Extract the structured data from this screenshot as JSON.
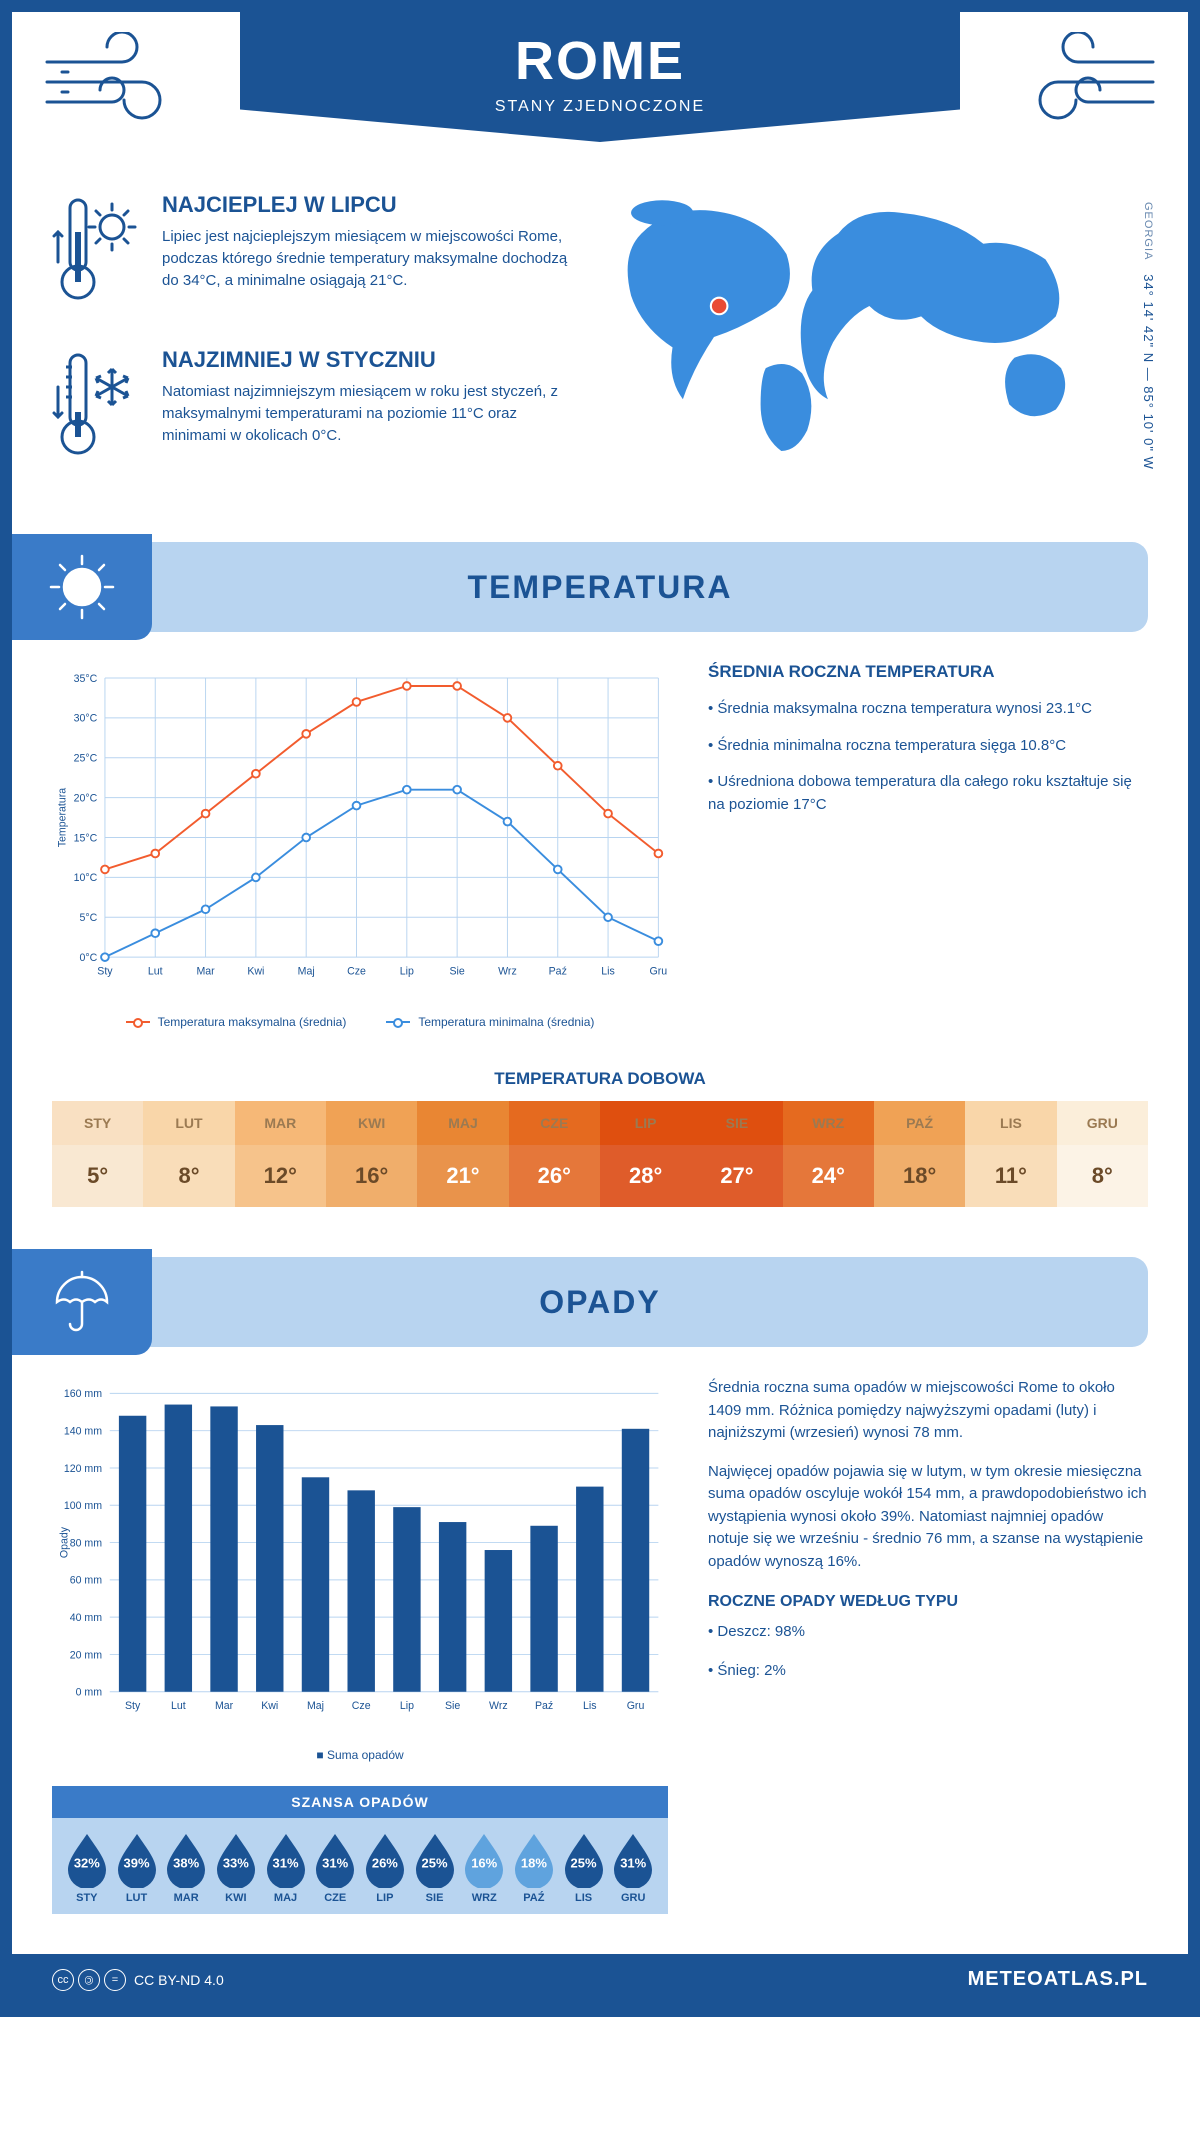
{
  "header": {
    "city": "ROME",
    "country": "STANY ZJEDNOCZONE"
  },
  "map": {
    "coords": "34° 14' 42\" N — 85° 10' 0\" W",
    "region": "GEORGIA",
    "marker_color": "#e94b35",
    "land_color": "#3a8dde"
  },
  "facts": {
    "hot": {
      "title": "NAJCIEPLEJ W LIPCU",
      "text": "Lipiec jest najcieplejszym miesiącem w miejscowości Rome, podczas którego średnie temperatury maksymalne dochodzą do 34°C, a minimalne osiągają 21°C."
    },
    "cold": {
      "title": "NAJZIMNIEJ W STYCZNIU",
      "text": "Natomiast najzimniejszym miesiącem w roku jest styczeń, z maksymalnymi temperaturami na poziomie 11°C oraz minimami w okolicach 0°C."
    }
  },
  "temperature": {
    "section_title": "TEMPERATURA",
    "chart": {
      "type": "line",
      "months": [
        "Sty",
        "Lut",
        "Mar",
        "Kwi",
        "Maj",
        "Cze",
        "Lip",
        "Sie",
        "Wrz",
        "Paź",
        "Lis",
        "Gru"
      ],
      "series_max": {
        "label": "Temperatura maksymalna (średnia)",
        "color": "#f25c2e",
        "values": [
          11,
          13,
          18,
          23,
          28,
          32,
          34,
          34,
          30,
          24,
          18,
          13
        ]
      },
      "series_min": {
        "label": "Temperatura minimalna (średnia)",
        "color": "#3a8dde",
        "values": [
          0,
          3,
          6,
          10,
          15,
          19,
          21,
          21,
          17,
          11,
          5,
          2
        ]
      },
      "ylabel": "Temperatura",
      "ylim": [
        0,
        35
      ],
      "ytick_step": 5,
      "yunit": "°C",
      "grid_color": "#b8d4f0",
      "background_color": "#ffffff",
      "axis_color": "#1b5394",
      "line_width": 2,
      "marker": "circle"
    },
    "annual": {
      "title": "ŚREDNIA ROCZNA TEMPERATURA",
      "bullets": [
        "Średnia maksymalna roczna temperatura wynosi 23.1°C",
        "Średnia minimalna roczna temperatura sięga 10.8°C",
        "Uśredniona dobowa temperatura dla całego roku kształtuje się na poziomie 17°C"
      ]
    },
    "daily": {
      "title": "TEMPERATURA DOBOWA",
      "months": [
        "STY",
        "LUT",
        "MAR",
        "KWI",
        "MAJ",
        "CZE",
        "LIP",
        "SIE",
        "WRZ",
        "PAŹ",
        "LIS",
        "GRU"
      ],
      "values": [
        "5°",
        "8°",
        "12°",
        "16°",
        "21°",
        "26°",
        "28°",
        "27°",
        "24°",
        "18°",
        "11°",
        "8°"
      ],
      "header_colors": [
        "#f9e0c2",
        "#f9d6a9",
        "#f6b877",
        "#f0a255",
        "#e98633",
        "#e56a1f",
        "#df4f0f",
        "#df4f0f",
        "#e56a1f",
        "#f0a255",
        "#f9d6a9",
        "#fbeeda"
      ],
      "value_colors": [
        "#f9e8d2",
        "#f9ddb9",
        "#f6c38b",
        "#f0ae6b",
        "#e9934b",
        "#e5773a",
        "#df5c2a",
        "#df5c2a",
        "#e5773a",
        "#f0ae6b",
        "#f9ddb9",
        "#fcf3e6"
      ],
      "header_text_color": "#9b7a52",
      "value_text_color_dark": "#6b4a28",
      "value_text_color_light": "#ffffff"
    }
  },
  "precip": {
    "section_title": "OPADY",
    "chart": {
      "type": "bar",
      "months": [
        "Sty",
        "Lut",
        "Mar",
        "Kwi",
        "Maj",
        "Cze",
        "Lip",
        "Sie",
        "Wrz",
        "Paź",
        "Lis",
        "Gru"
      ],
      "values": [
        148,
        154,
        153,
        143,
        115,
        108,
        99,
        91,
        76,
        89,
        110,
        141
      ],
      "series_label": "Suma opadów",
      "bar_color": "#1b5394",
      "ylabel": "Opady",
      "ylim": [
        0,
        160
      ],
      "ytick_step": 20,
      "yunit": " mm",
      "grid_color": "#b8d4f0",
      "axis_color": "#1b5394",
      "bar_width": 0.6
    },
    "text": {
      "p1": "Średnia roczna suma opadów w miejscowości Rome to około 1409 mm. Różnica pomiędzy najwyższymi opadami (luty) i najniższymi (wrzesień) wynosi 78 mm.",
      "p2": "Najwięcej opadów pojawia się w lutym, w tym okresie miesięczna suma opadów oscyluje wokół 154 mm, a prawdopodobieństwo ich wystąpienia wynosi około 39%. Natomiast najmniej opadów notuje się we wrześniu - średnio 76 mm, a szanse na wystąpienie opadów wynoszą 16%."
    },
    "chance": {
      "title": "SZANSA OPADÓW",
      "months": [
        "STY",
        "LUT",
        "MAR",
        "KWI",
        "MAJ",
        "CZE",
        "LIP",
        "SIE",
        "WRZ",
        "PAŹ",
        "LIS",
        "GRU"
      ],
      "values": [
        32,
        39,
        38,
        33,
        31,
        31,
        26,
        25,
        16,
        18,
        25,
        31
      ],
      "dark_color": "#1b5394",
      "light_color": "#5fa3de",
      "threshold": 25
    },
    "by_type": {
      "title": "ROCZNE OPADY WEDŁUG TYPU",
      "items": [
        "Deszcz: 98%",
        "Śnieg: 2%"
      ]
    }
  },
  "footer": {
    "license": "CC BY-ND 4.0",
    "site": "METEOATLAS.PL"
  },
  "colors": {
    "primary": "#1b5394",
    "mid_blue": "#3a7bc8",
    "light_blue": "#b8d4f0"
  }
}
